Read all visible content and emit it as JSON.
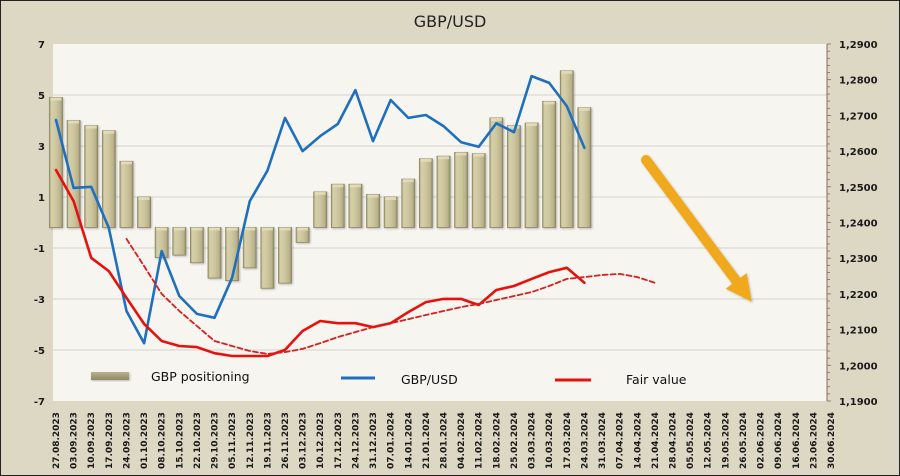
{
  "chart_data": {
    "type": "bar+line",
    "title": "GBP/USD",
    "categories": [
      "27.08.2023",
      "03.09.2023",
      "10.09.2023",
      "17.09.2023",
      "24.09.2023",
      "01.10.2023",
      "08.10.2023",
      "15.10.2023",
      "22.10.2023",
      "29.10.2023",
      "05.11.2023",
      "12.11.2023",
      "19.11.2023",
      "26.11.2023",
      "03.12.2023",
      "10.12.2023",
      "17.12.2023",
      "24.12.2023",
      "31.12.2023",
      "07.01.2024",
      "14.01.2024",
      "21.01.2024",
      "28.01.2024",
      "04.02.2024",
      "11.02.2024",
      "18.02.2024",
      "25.02.2024",
      "03.03.2024",
      "10.03.2024",
      "17.03.2024",
      "24.03.2024",
      "31.03.2024",
      "07.04.2024",
      "14.04.2024",
      "21.04.2024",
      "28.04.2024",
      "05.05.2024",
      "12.05.2024",
      "19.05.2024",
      "26.05.2024",
      "02.06.2024",
      "09.06.2024",
      "16.06.2024",
      "23.06.2024",
      "30.06.2024"
    ],
    "left_axis": {
      "min": -7,
      "max": 7,
      "ticks": [
        "7",
        "5",
        "3",
        "1",
        "-1",
        "-3",
        "-5",
        "-7"
      ],
      "tick_values": [
        7,
        5,
        3,
        1,
        -1,
        -3,
        -5,
        -7
      ]
    },
    "right_axis": {
      "min": 1.19,
      "max": 1.29,
      "ticks": [
        "1,2900",
        "1,2800",
        "1,2700",
        "1,2600",
        "1,2500",
        "1,2400",
        "1,2300",
        "1,2200",
        "1,2100",
        "1,2000",
        "1,1900"
      ],
      "tick_values": [
        1.29,
        1.28,
        1.27,
        1.26,
        1.25,
        1.24,
        1.23,
        1.22,
        1.21,
        1.2,
        1.19
      ]
    },
    "grid": true,
    "legend_position": "bottom-inside",
    "series": [
      {
        "name": "GBP positioning",
        "type": "bar",
        "axis": "left",
        "color": "#C9C29A",
        "values": [
          4.9,
          4.0,
          3.8,
          3.6,
          2.4,
          1.0,
          -1.3,
          -1.2,
          -1.5,
          -2.1,
          -2.2,
          -1.7,
          -2.5,
          -2.3,
          -0.7,
          1.2,
          1.5,
          1.5,
          1.1,
          1.0,
          1.7,
          2.5,
          2.6,
          2.75,
          2.7,
          4.1,
          3.8,
          3.9,
          4.75,
          5.95,
          4.5
        ]
      },
      {
        "name": "GBP/USD",
        "type": "line",
        "axis": "right",
        "color": "#1F6FBF",
        "values": [
          1.2687,
          1.2497,
          1.25,
          1.2385,
          1.2152,
          1.2062,
          1.232,
          1.2194,
          1.2144,
          1.2133,
          1.2245,
          1.246,
          1.2545,
          1.2693,
          1.26,
          1.2642,
          1.2676,
          1.2771,
          1.2628,
          1.2743,
          1.2693,
          1.2701,
          1.267,
          1.2625,
          1.2612,
          1.2678,
          1.2653,
          1.281,
          1.2791,
          1.2726,
          1.2609
        ]
      },
      {
        "name": "Fair value",
        "type": "line",
        "axis": "right",
        "color": "#E8100C",
        "values": [
          1.2547,
          1.246,
          1.2301,
          1.2264,
          1.2189,
          1.2116,
          1.2068,
          1.2054,
          1.2051,
          1.2034,
          1.2026,
          1.2026,
          1.2026,
          1.2043,
          1.2096,
          1.2124,
          1.2118,
          1.2118,
          1.2107,
          1.2118,
          1.2149,
          1.2177,
          1.2186,
          1.2186,
          1.2169,
          1.2211,
          1.2222,
          1.2242,
          1.2261,
          1.2273,
          1.2231
        ]
      },
      {
        "name": "Fair value trend",
        "type": "line",
        "style": "dashed",
        "axis": "right",
        "color": "#D81E1E",
        "legend": false,
        "start_index": 4,
        "values": [
          1.2354,
          1.2278,
          1.22,
          1.2152,
          1.211,
          1.2068,
          1.2054,
          1.204,
          1.2032,
          1.2037,
          1.2046,
          1.2062,
          1.2079,
          1.2093,
          1.2107,
          1.2118,
          1.2129,
          1.2141,
          1.2152,
          1.2163,
          1.2172,
          1.2183,
          1.2194,
          1.2205,
          1.2222,
          1.2242,
          1.2247,
          1.2253,
          1.2256,
          1.2247,
          1.2231
        ]
      }
    ],
    "annotations": [
      {
        "type": "arrow",
        "direction": "down-right",
        "color": "#F0A81C",
        "from_index": 33.5,
        "from_value": 1.2575,
        "to_index": 39.5,
        "to_value": 1.2178
      }
    ]
  },
  "legend": {
    "items": [
      {
        "label": "GBP positioning",
        "color": "#A9A27A"
      },
      {
        "label": "GBP/USD",
        "color": "#1F6FBF"
      },
      {
        "label": "Fair value",
        "color": "#E8100C"
      }
    ]
  }
}
